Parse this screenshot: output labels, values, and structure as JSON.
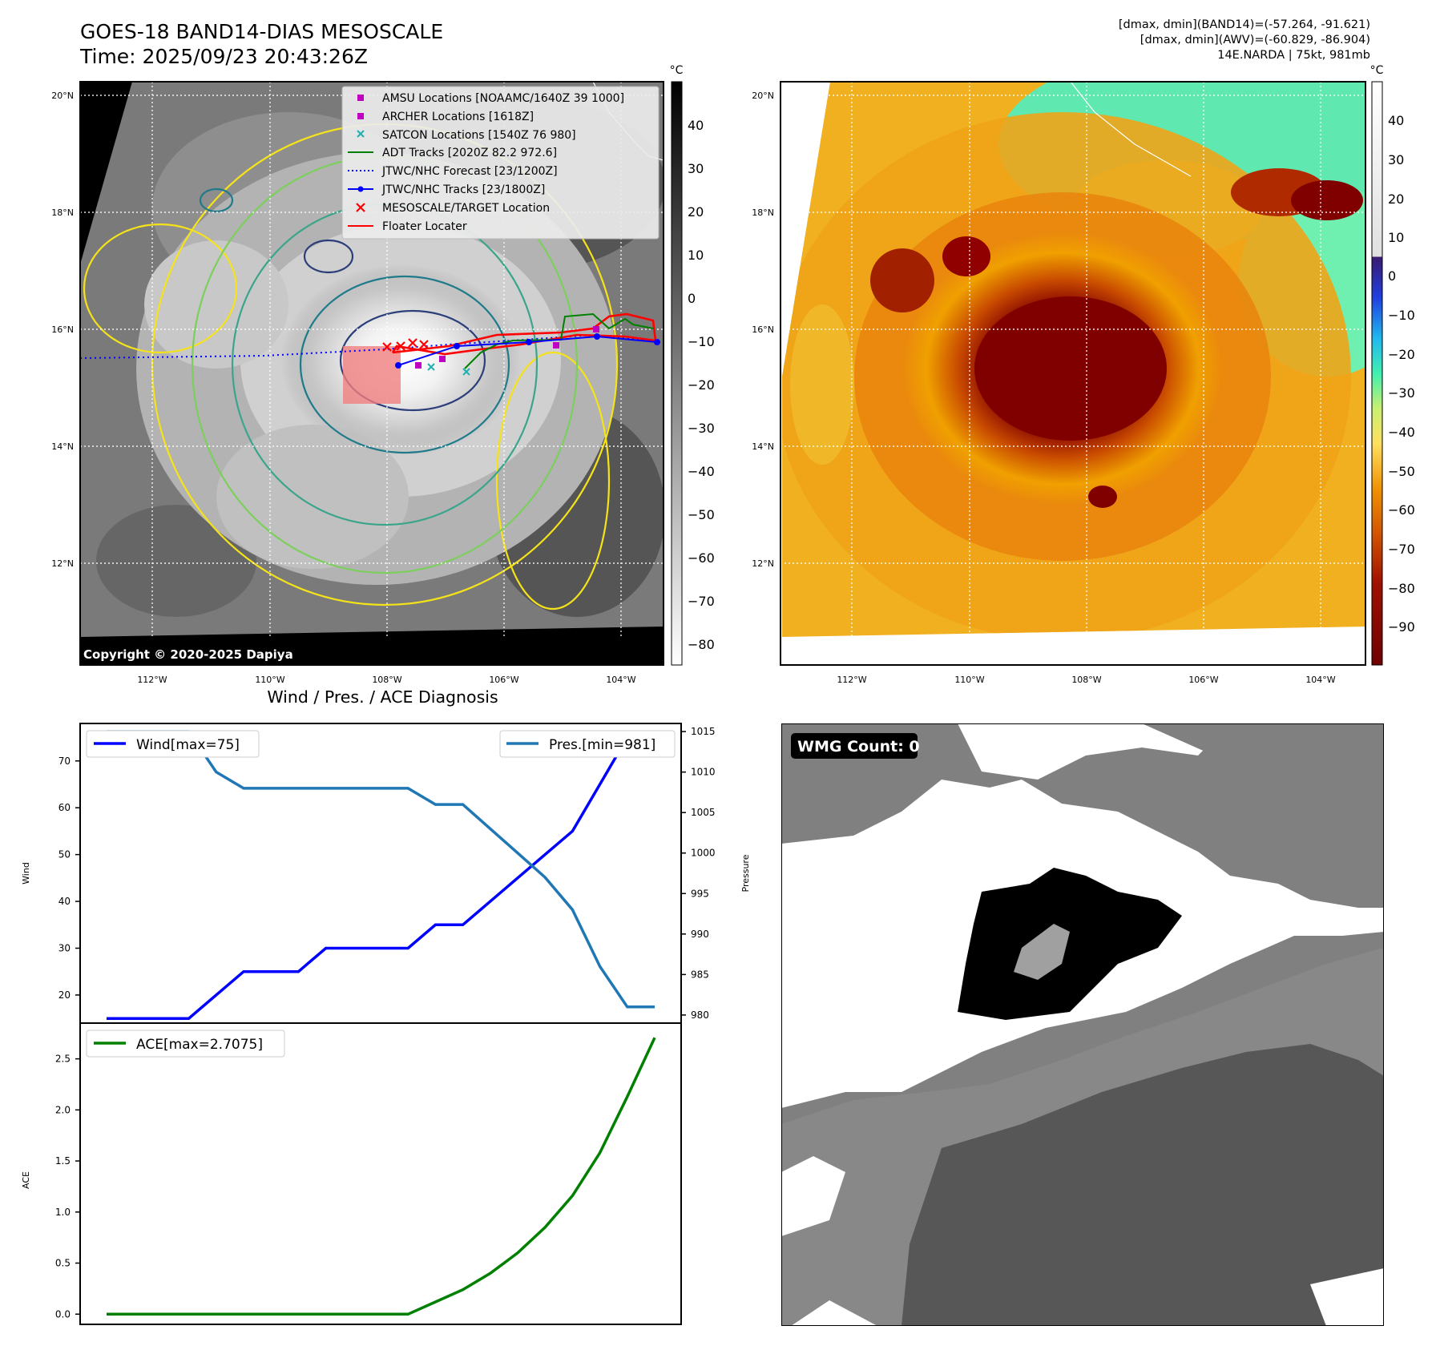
{
  "header": {
    "title_line1": "GOES-18 BAND14-DIAS MESOSCALE",
    "title_line2": "Time: 2025/09/23 20:43:26Z",
    "info_line1": "[dmax, dmin](BAND14)=(-57.264, -91.621)",
    "info_line2": "[dmax, dmin](AWV)=(-60.829, -86.904)",
    "info_line3": "14E.NARDA | 75kt, 981mb"
  },
  "map_left": {
    "colorbar_unit": "°C",
    "colorbar_ticks": [
      "40",
      "30",
      "20",
      "10",
      "0",
      "−10",
      "−20",
      "−30",
      "−40",
      "−50",
      "−60",
      "−70",
      "−80"
    ],
    "lat_labels": [
      "20°N",
      "18°N",
      "16°N",
      "14°N",
      "12°N"
    ],
    "lon_labels": [
      "112°W",
      "110°W",
      "108°W",
      "106°W",
      "104°W"
    ],
    "copyright": "Copyright © 2020-2025 Dapiya",
    "legend": [
      {
        "label": "AMSU Locations [NOAAMC/1640Z 39 1000]",
        "color": "#c000c0",
        "marker": "square"
      },
      {
        "label": "ARCHER Locations [1618Z]",
        "color": "#c000c0",
        "marker": "square"
      },
      {
        "label": "SATCON Locations [1540Z 76 980]",
        "color": "#20b0b0",
        "marker": "x"
      },
      {
        "label": "ADT Tracks [2020Z 82.2 972.6]",
        "color": "#008000",
        "marker": "line"
      },
      {
        "label": "JTWC/NHC Forecast [23/1200Z]",
        "color": "#0000ff",
        "marker": "dotted"
      },
      {
        "label": "JTWC/NHC Tracks [23/1800Z]",
        "color": "#0000ff",
        "marker": "line-dot"
      },
      {
        "label": "MESOSCALE/TARGET Location",
        "color": "#ff0000",
        "marker": "x"
      },
      {
        "label": "Floater Locater",
        "color": "#ff0000",
        "marker": "line"
      }
    ]
  },
  "map_right": {
    "colorbar_unit": "°C",
    "colorbar_ticks": [
      "40",
      "30",
      "20",
      "10",
      "0",
      "−10",
      "−20",
      "−30",
      "−40",
      "−50",
      "−60",
      "−70",
      "−80",
      "−90"
    ],
    "lat_labels": [
      "20°N",
      "18°N",
      "16°N",
      "14°N",
      "12°N"
    ],
    "lon_labels": [
      "112°W",
      "110°W",
      "108°W",
      "106°W",
      "104°W"
    ]
  },
  "diagnosis": {
    "title": "Wind / Pres. / ACE Diagnosis",
    "wind_ylabel": "Wind",
    "pressure_ylabel": "Pressure",
    "ace_ylabel": "ACE",
    "wind_legend": "Wind[max=75]",
    "pressure_legend": "Pres.[min=981]",
    "ace_legend": "ACE[max=2.7075]"
  },
  "wmg": {
    "label": "WMG Count: 0"
  },
  "chart_data": [
    {
      "type": "line",
      "title": "Wind / Pres. / ACE Diagnosis",
      "x": [
        0,
        1,
        2,
        3,
        4,
        5,
        6,
        7,
        8,
        9,
        10,
        11,
        12,
        13,
        14,
        15,
        16,
        17,
        18,
        19,
        20
      ],
      "ylabel": "Wind",
      "ylim": [
        14,
        78
      ],
      "yticks": [
        20,
        30,
        40,
        50,
        60,
        70
      ],
      "series": [
        {
          "name": "Wind[max=75]",
          "color": "#0000ff",
          "values": [
            15,
            15,
            15,
            15,
            20,
            25,
            25,
            25,
            30,
            30,
            30,
            30,
            35,
            35,
            40,
            45,
            50,
            55,
            65,
            75,
            75
          ]
        }
      ],
      "y2label": "Pressure",
      "y2lim": [
        979,
        1016
      ],
      "y2ticks": [
        980,
        985,
        990,
        995,
        1000,
        1005,
        1010,
        1015
      ],
      "series_y2": [
        {
          "name": "Pres.[min=981]",
          "color": "#1f77b4",
          "values": [
            1015,
            1015,
            1015,
            1015,
            1010,
            1008,
            1008,
            1008,
            1008,
            1008,
            1008,
            1008,
            1006,
            1006,
            1003,
            1000,
            997,
            993,
            986,
            981,
            981
          ]
        }
      ]
    },
    {
      "type": "line",
      "ylabel": "ACE",
      "ylim": [
        -0.1,
        2.85
      ],
      "yticks": [
        "0.0",
        "0.5",
        "1.0",
        "1.5",
        "2.0",
        "2.5"
      ],
      "series": [
        {
          "name": "ACE[max=2.7075]",
          "color": "#008000",
          "values": [
            0,
            0,
            0,
            0,
            0,
            0,
            0,
            0,
            0,
            0,
            0,
            0,
            0.12,
            0.24,
            0.4,
            0.6,
            0.85,
            1.16,
            1.58,
            2.13,
            2.7075
          ]
        }
      ]
    }
  ]
}
